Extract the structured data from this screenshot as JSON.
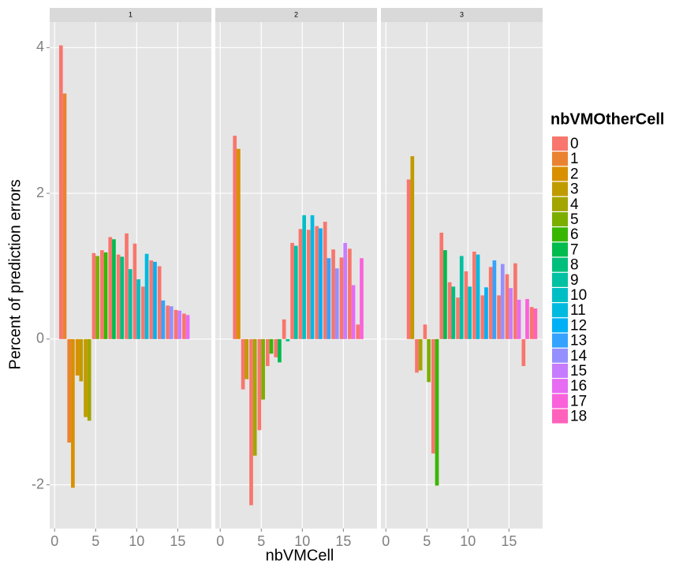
{
  "chart_data": {
    "type": "facet-bar",
    "xlabel": "nbVMCell",
    "ylabel": "Percent of prediction errors",
    "xlim": [
      -0.6,
      19.1
    ],
    "ylim": [
      -2.6,
      4.35
    ],
    "xticks": [
      0,
      5,
      10,
      15
    ],
    "yticks": [
      -2,
      0,
      2,
      4
    ],
    "grid": true,
    "legend": {
      "title": "nbVMOtherCell",
      "labels": [
        "0",
        "1",
        "2",
        "3",
        "4",
        "5",
        "6",
        "7",
        "8",
        "9",
        "10",
        "11",
        "12",
        "13",
        "14",
        "15",
        "16",
        "17",
        "18"
      ],
      "colors": [
        "#F8766D",
        "#EA8331",
        "#D89000",
        "#C09B00",
        "#A3A500",
        "#7CAE00",
        "#39B600",
        "#00BB4E",
        "#00BF7D",
        "#00C1A3",
        "#00BFC4",
        "#00BAE0",
        "#00B0F6",
        "#35A2FF",
        "#9590FF",
        "#C77CFF",
        "#E76BF3",
        "#FA62DB",
        "#FF62BC"
      ]
    },
    "facets": [
      {
        "label": "1",
        "bars": [
          {
            "x": 1,
            "group": 0,
            "value": 4.03
          },
          {
            "x": 1,
            "group": 1,
            "value": 3.37
          },
          {
            "x": 2,
            "group": 1,
            "value": -1.42
          },
          {
            "x": 2,
            "group": 2,
            "value": -2.04
          },
          {
            "x": 3,
            "group": 2,
            "value": -0.5
          },
          {
            "x": 3,
            "group": 3,
            "value": -0.58
          },
          {
            "x": 4,
            "group": 3,
            "value": -1.07
          },
          {
            "x": 4,
            "group": 4,
            "value": -1.12
          },
          {
            "x": 5,
            "group": 0,
            "value": 1.18
          },
          {
            "x": 5,
            "group": 5,
            "value": 1.14
          },
          {
            "x": 6,
            "group": 0,
            "value": 1.22
          },
          {
            "x": 6,
            "group": 6,
            "value": 1.19
          },
          {
            "x": 7,
            "group": 0,
            "value": 1.4
          },
          {
            "x": 7,
            "group": 7,
            "value": 1.37
          },
          {
            "x": 8,
            "group": 0,
            "value": 1.16
          },
          {
            "x": 8,
            "group": 8,
            "value": 1.13
          },
          {
            "x": 9,
            "group": 0,
            "value": 1.45
          },
          {
            "x": 9,
            "group": 9,
            "value": 0.96
          },
          {
            "x": 10,
            "group": 0,
            "value": 1.31
          },
          {
            "x": 10,
            "group": 10,
            "value": 0.82
          },
          {
            "x": 11,
            "group": 0,
            "value": 0.72
          },
          {
            "x": 11,
            "group": 11,
            "value": 1.17
          },
          {
            "x": 12,
            "group": 0,
            "value": 1.08
          },
          {
            "x": 12,
            "group": 12,
            "value": 1.06
          },
          {
            "x": 13,
            "group": 0,
            "value": 1.0
          },
          {
            "x": 13,
            "group": 13,
            "value": 0.53
          },
          {
            "x": 14,
            "group": 0,
            "value": 0.46
          },
          {
            "x": 14,
            "group": 14,
            "value": 0.45
          },
          {
            "x": 15,
            "group": 0,
            "value": 0.4
          },
          {
            "x": 15,
            "group": 15,
            "value": 0.39
          },
          {
            "x": 16,
            "group": 0,
            "value": 0.35
          },
          {
            "x": 16,
            "group": 16,
            "value": 0.33
          }
        ]
      },
      {
        "label": "2",
        "bars": [
          {
            "x": 2,
            "group": 0,
            "value": 2.79
          },
          {
            "x": 2,
            "group": 2,
            "value": 2.61
          },
          {
            "x": 3,
            "group": 0,
            "value": -0.69
          },
          {
            "x": 3,
            "group": 3,
            "value": -0.55
          },
          {
            "x": 4,
            "group": 0,
            "value": -2.28
          },
          {
            "x": 4,
            "group": 4,
            "value": -1.6
          },
          {
            "x": 5,
            "group": 0,
            "value": -1.25
          },
          {
            "x": 5,
            "group": 5,
            "value": -0.83
          },
          {
            "x": 6,
            "group": 0,
            "value": -0.37
          },
          {
            "x": 6,
            "group": 6,
            "value": -0.2
          },
          {
            "x": 7,
            "group": 0,
            "value": -0.25
          },
          {
            "x": 7,
            "group": 7,
            "value": -0.32
          },
          {
            "x": 8,
            "group": 0,
            "value": 0.27
          },
          {
            "x": 8,
            "group": 8,
            "value": -0.03
          },
          {
            "x": 9,
            "group": 0,
            "value": 1.32
          },
          {
            "x": 9,
            "group": 9,
            "value": 1.28
          },
          {
            "x": 10,
            "group": 0,
            "value": 1.51
          },
          {
            "x": 10,
            "group": 10,
            "value": 1.7
          },
          {
            "x": 11,
            "group": 0,
            "value": 1.5
          },
          {
            "x": 11,
            "group": 11,
            "value": 1.7
          },
          {
            "x": 12,
            "group": 0,
            "value": 1.55
          },
          {
            "x": 12,
            "group": 12,
            "value": 1.52
          },
          {
            "x": 13,
            "group": 0,
            "value": 1.61
          },
          {
            "x": 13,
            "group": 13,
            "value": 1.11
          },
          {
            "x": 14,
            "group": 0,
            "value": 1.23
          },
          {
            "x": 14,
            "group": 14,
            "value": 0.97
          },
          {
            "x": 15,
            "group": 0,
            "value": 1.12
          },
          {
            "x": 15,
            "group": 15,
            "value": 1.32
          },
          {
            "x": 16,
            "group": 0,
            "value": 1.24
          },
          {
            "x": 16,
            "group": 16,
            "value": 0.74
          },
          {
            "x": 17,
            "group": 0,
            "value": 0.2
          },
          {
            "x": 17,
            "group": 17,
            "value": 1.11
          }
        ]
      },
      {
        "label": "3",
        "bars": [
          {
            "x": 3,
            "group": 0,
            "value": 2.19
          },
          {
            "x": 3,
            "group": 3,
            "value": 2.51
          },
          {
            "x": 4,
            "group": 0,
            "value": -0.46
          },
          {
            "x": 4,
            "group": 4,
            "value": -0.43
          },
          {
            "x": 5,
            "group": 0,
            "value": 0.2
          },
          {
            "x": 5,
            "group": 5,
            "value": -0.59
          },
          {
            "x": 6,
            "group": 0,
            "value": -1.57
          },
          {
            "x": 6,
            "group": 6,
            "value": -2.01
          },
          {
            "x": 7,
            "group": 0,
            "value": 1.46
          },
          {
            "x": 7,
            "group": 7,
            "value": 1.22
          },
          {
            "x": 8,
            "group": 0,
            "value": 0.78
          },
          {
            "x": 8,
            "group": 8,
            "value": 0.72
          },
          {
            "x": 9,
            "group": 0,
            "value": 0.57
          },
          {
            "x": 9,
            "group": 9,
            "value": 1.14
          },
          {
            "x": 10,
            "group": 0,
            "value": 0.93
          },
          {
            "x": 10,
            "group": 10,
            "value": 0.72
          },
          {
            "x": 11,
            "group": 0,
            "value": 1.2
          },
          {
            "x": 11,
            "group": 11,
            "value": 1.16
          },
          {
            "x": 12,
            "group": 0,
            "value": 0.6
          },
          {
            "x": 12,
            "group": 12,
            "value": 0.71
          },
          {
            "x": 13,
            "group": 0,
            "value": 0.99
          },
          {
            "x": 13,
            "group": 13,
            "value": 1.08
          },
          {
            "x": 14,
            "group": 0,
            "value": 0.6
          },
          {
            "x": 14,
            "group": 14,
            "value": 1.03
          },
          {
            "x": 15,
            "group": 0,
            "value": 0.89
          },
          {
            "x": 15,
            "group": 15,
            "value": 0.7
          },
          {
            "x": 16,
            "group": 0,
            "value": 1.04
          },
          {
            "x": 16,
            "group": 16,
            "value": 0.54
          },
          {
            "x": 17,
            "group": 0,
            "value": -0.37
          },
          {
            "x": 17,
            "group": 17,
            "value": 0.55
          },
          {
            "x": 18,
            "group": 0,
            "value": 0.44
          },
          {
            "x": 18,
            "group": 18,
            "value": 0.42
          }
        ]
      }
    ]
  }
}
